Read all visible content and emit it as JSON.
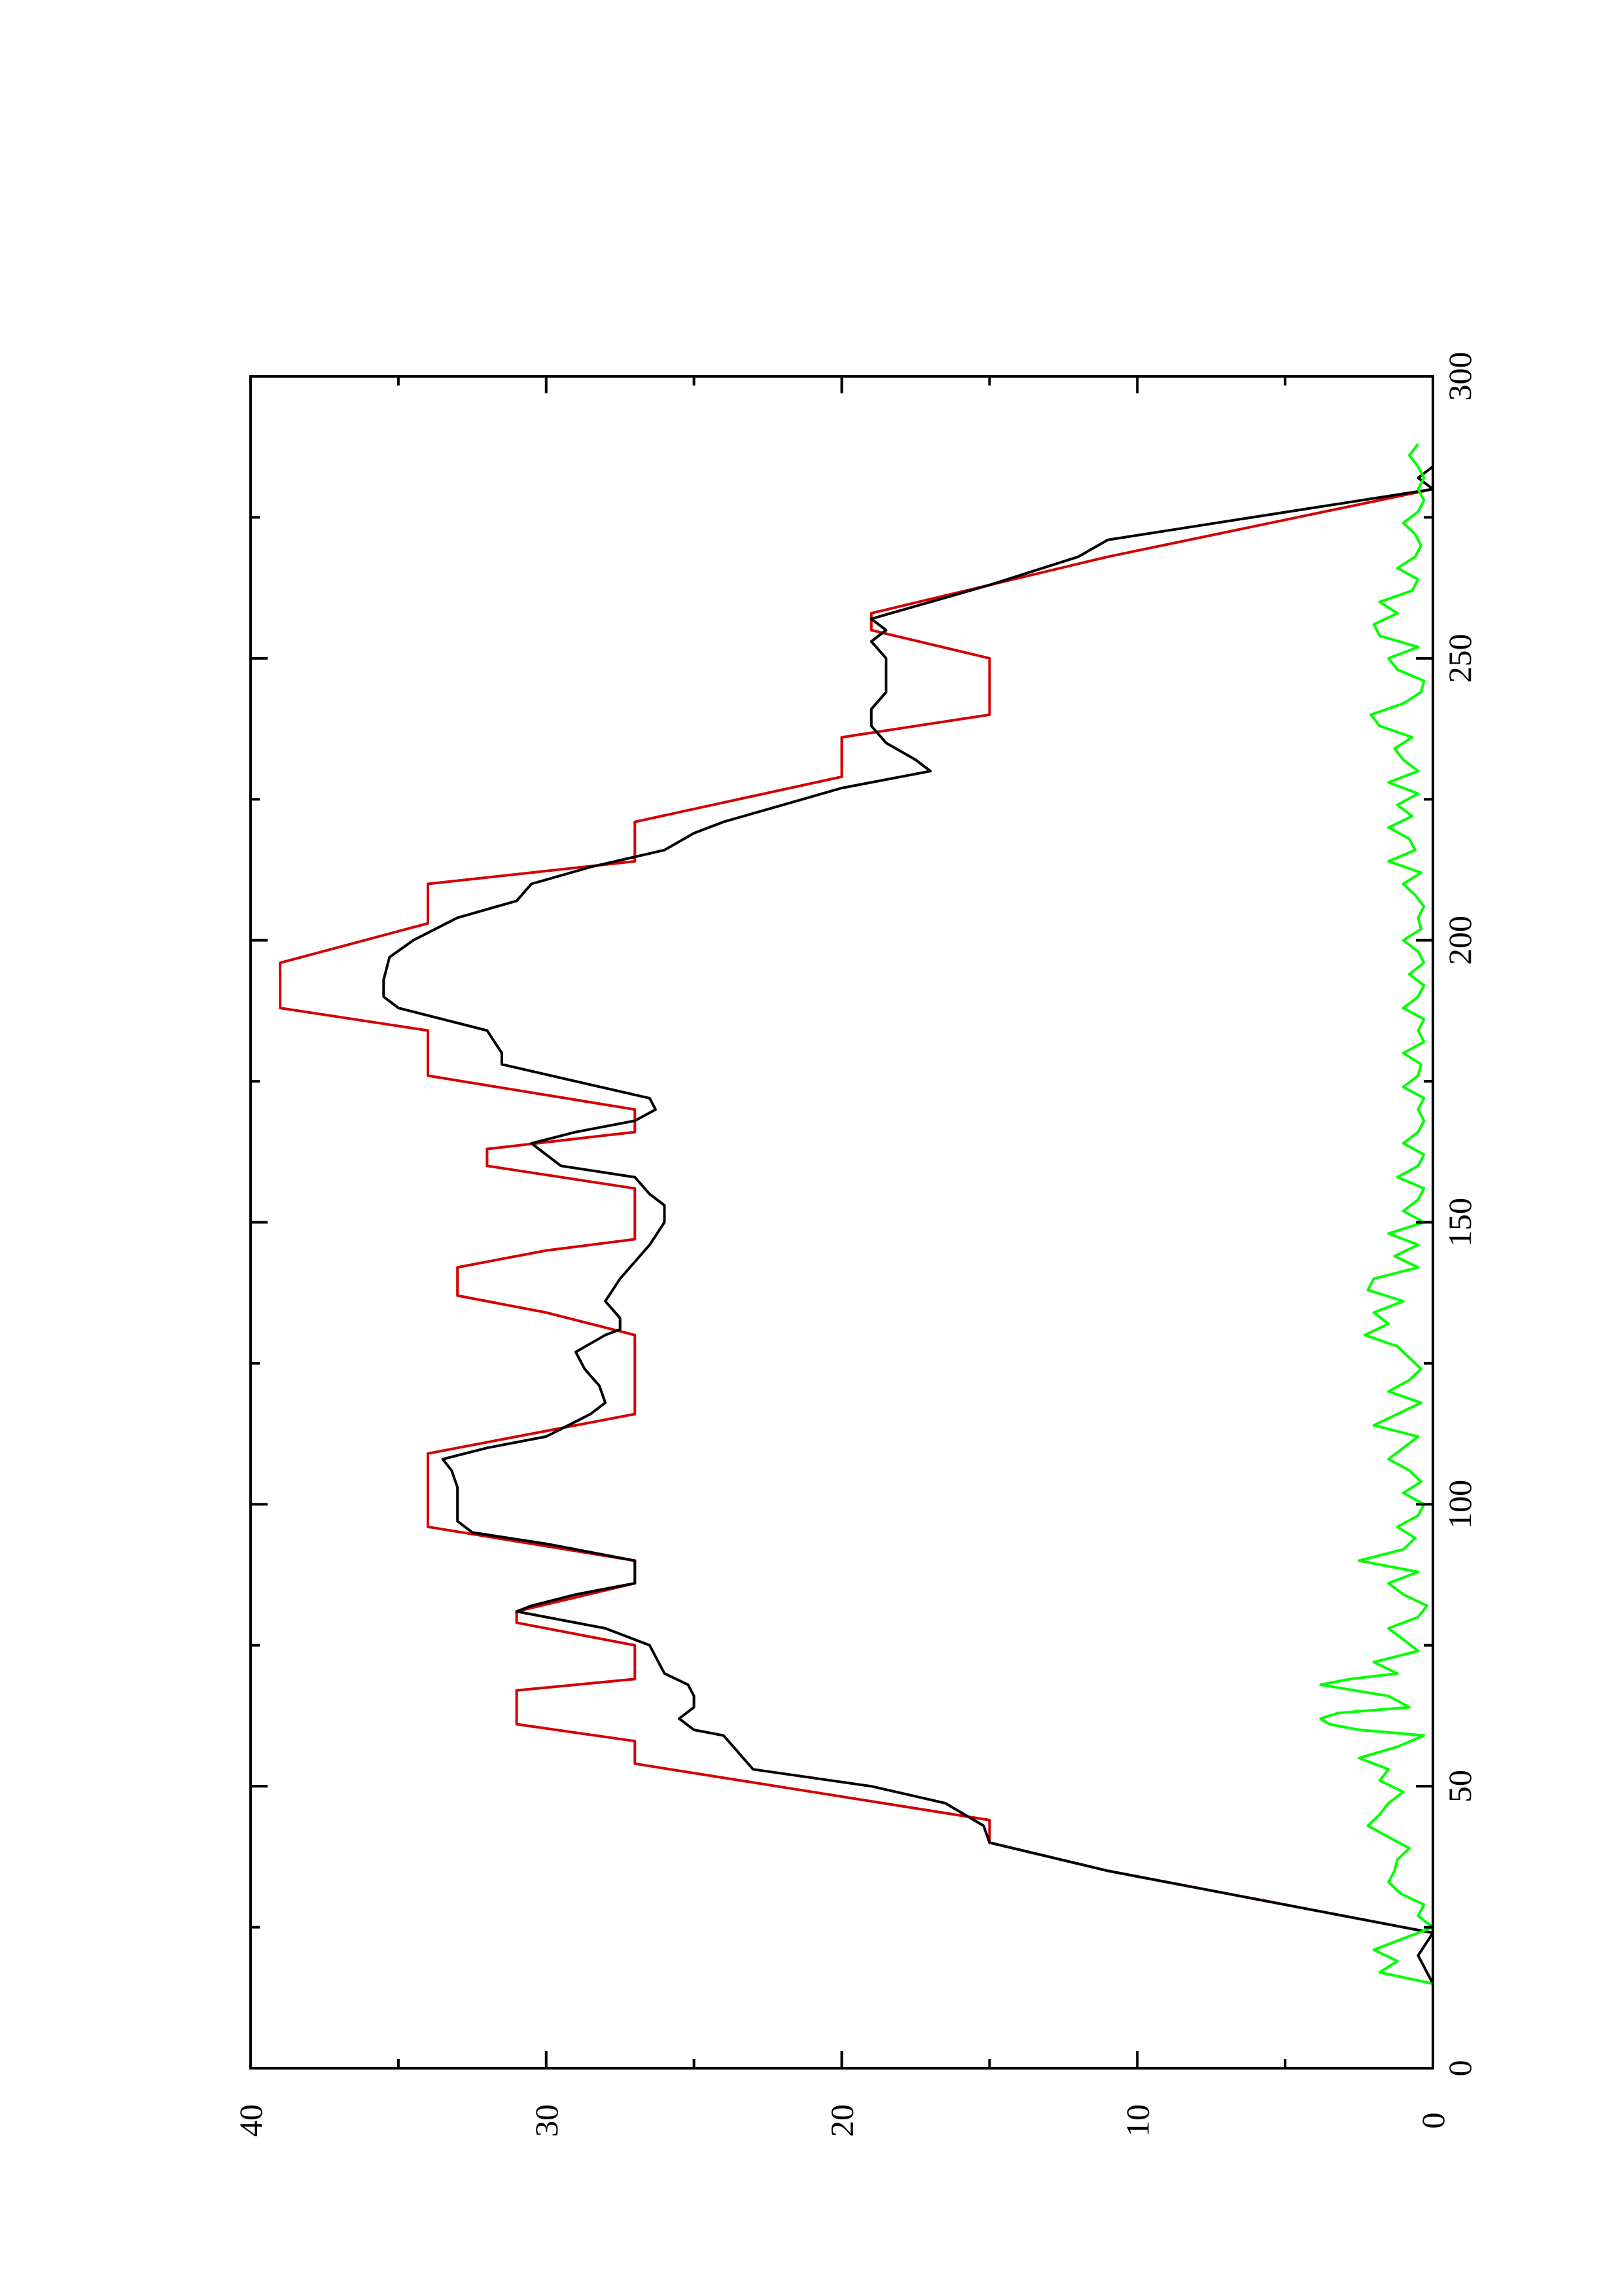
{
  "chart_data": {
    "type": "line",
    "orientation": "rotated-90-ccw",
    "title": "",
    "xlabel": "",
    "ylabel": "",
    "xlim": [
      0,
      300
    ],
    "ylim": [
      0,
      40
    ],
    "x_ticks": [
      "0",
      "50",
      "100",
      "150",
      "200",
      "250",
      "300"
    ],
    "y_ticks": [
      "0",
      "10",
      "20",
      "30",
      "40"
    ],
    "x_minor_step": 25,
    "y_minor_step": 5,
    "grid": false,
    "legend": "none",
    "series": [
      {
        "color": "#d40000",
        "points": [
          [
            0,
            0
          ],
          [
            24,
            0
          ],
          [
            35,
            11
          ],
          [
            40,
            15
          ],
          [
            44,
            15
          ],
          [
            54,
            27
          ],
          [
            58,
            27
          ],
          [
            61,
            31
          ],
          [
            67,
            31
          ],
          [
            69,
            27
          ],
          [
            75,
            27
          ],
          [
            79,
            31
          ],
          [
            81,
            31
          ],
          [
            86,
            27
          ],
          [
            90,
            27
          ],
          [
            96,
            34
          ],
          [
            109,
            34
          ],
          [
            116,
            27
          ],
          [
            130,
            27
          ],
          [
            134,
            30
          ],
          [
            137,
            33
          ],
          [
            142,
            33
          ],
          [
            145,
            30
          ],
          [
            147,
            27
          ],
          [
            156,
            27
          ],
          [
            160,
            32
          ],
          [
            163,
            32
          ],
          [
            166,
            27
          ],
          [
            170,
            27
          ],
          [
            176,
            34
          ],
          [
            184,
            34
          ],
          [
            188,
            39
          ],
          [
            196,
            39
          ],
          [
            203,
            34
          ],
          [
            210,
            34
          ],
          [
            214,
            27
          ],
          [
            221,
            27
          ],
          [
            229,
            20
          ],
          [
            236,
            20
          ],
          [
            240,
            15
          ],
          [
            250,
            15
          ],
          [
            255,
            19
          ],
          [
            258,
            19
          ],
          [
            263,
            15
          ],
          [
            268,
            11
          ],
          [
            280,
            0
          ],
          [
            300,
            0
          ]
        ]
      },
      {
        "color": "#000000",
        "points": [
          [
            0,
            0
          ],
          [
            15,
            0
          ],
          [
            20,
            0.5
          ],
          [
            24,
            0
          ],
          [
            35,
            11
          ],
          [
            40,
            15
          ],
          [
            43,
            15.2
          ],
          [
            47,
            16.5
          ],
          [
            50,
            19
          ],
          [
            53,
            23
          ],
          [
            56,
            23.5
          ],
          [
            59,
            24
          ],
          [
            60,
            25
          ],
          [
            62,
            25.5
          ],
          [
            64,
            25
          ],
          [
            66,
            25
          ],
          [
            68,
            25.2
          ],
          [
            70,
            26
          ],
          [
            72,
            26.2
          ],
          [
            75,
            26.5
          ],
          [
            78,
            28
          ],
          [
            81,
            31
          ],
          [
            82,
            30.5
          ],
          [
            84,
            29
          ],
          [
            86,
            27
          ],
          [
            88,
            27
          ],
          [
            90,
            27
          ],
          [
            93,
            30
          ],
          [
            95,
            32.5
          ],
          [
            97,
            33
          ],
          [
            99,
            33
          ],
          [
            103,
            33
          ],
          [
            106,
            33.2
          ],
          [
            108,
            33.5
          ],
          [
            110,
            32
          ],
          [
            112,
            30
          ],
          [
            116,
            28.5
          ],
          [
            118,
            28
          ],
          [
            121,
            28.2
          ],
          [
            124,
            28.7
          ],
          [
            127,
            29
          ],
          [
            130,
            28
          ],
          [
            131,
            27.5
          ],
          [
            133,
            27.5
          ],
          [
            136,
            28
          ],
          [
            140,
            27.5
          ],
          [
            143,
            27
          ],
          [
            146,
            26.5
          ],
          [
            150,
            26
          ],
          [
            153,
            26
          ],
          [
            155,
            26.5
          ],
          [
            158,
            27
          ],
          [
            160,
            29.5
          ],
          [
            162,
            30
          ],
          [
            164,
            30.5
          ],
          [
            166,
            29
          ],
          [
            168,
            27
          ],
          [
            170,
            26.3
          ],
          [
            172,
            26.5
          ],
          [
            175,
            29
          ],
          [
            178,
            31.5
          ],
          [
            180,
            31.5
          ],
          [
            184,
            32
          ],
          [
            188,
            35
          ],
          [
            190,
            35.5
          ],
          [
            193,
            35.5
          ],
          [
            197,
            35.3
          ],
          [
            200,
            34.5
          ],
          [
            204,
            33
          ],
          [
            207,
            31
          ],
          [
            210,
            30.5
          ],
          [
            213,
            28.5
          ],
          [
            216,
            26
          ],
          [
            219,
            25
          ],
          [
            221,
            24
          ],
          [
            224,
            22
          ],
          [
            227,
            20
          ],
          [
            230,
            17
          ],
          [
            232,
            17.5
          ],
          [
            235,
            18.5
          ],
          [
            238,
            19
          ],
          [
            241,
            19
          ],
          [
            244,
            18.5
          ],
          [
            247,
            18.5
          ],
          [
            250,
            18.5
          ],
          [
            253,
            19
          ],
          [
            255,
            18.5
          ],
          [
            257,
            19
          ],
          [
            260,
            17
          ],
          [
            263,
            15
          ],
          [
            268,
            12
          ],
          [
            271,
            11
          ],
          [
            280,
            0
          ],
          [
            282,
            0.5
          ],
          [
            284,
            0
          ],
          [
            300,
            0
          ]
        ]
      },
      {
        "color": "#00ff00",
        "points": [
          [
            0,
            0
          ],
          [
            15,
            0
          ],
          [
            17,
            1.8
          ],
          [
            19,
            1.2
          ],
          [
            21,
            2
          ],
          [
            23,
            1
          ],
          [
            25,
            0
          ],
          [
            27,
            0.5
          ],
          [
            29,
            0.3
          ],
          [
            31,
            1.1
          ],
          [
            33,
            1.5
          ],
          [
            35,
            1.3
          ],
          [
            37,
            1.2
          ],
          [
            39,
            0.8
          ],
          [
            41,
            1.5
          ],
          [
            43,
            2.2
          ],
          [
            45,
            1.8
          ],
          [
            47,
            1.5
          ],
          [
            49,
            1
          ],
          [
            51,
            1.8
          ],
          [
            53,
            1.5
          ],
          [
            55,
            2.5
          ],
          [
            57,
            1.2
          ],
          [
            59,
            0.3
          ],
          [
            60,
            2.5
          ],
          [
            61,
            3.5
          ],
          [
            62,
            3.8
          ],
          [
            63,
            3.2
          ],
          [
            64,
            0.8
          ],
          [
            66,
            1.5
          ],
          [
            68,
            3.8
          ],
          [
            69,
            2.8
          ],
          [
            70,
            1.2
          ],
          [
            72,
            2
          ],
          [
            74,
            0.5
          ],
          [
            76,
            1
          ],
          [
            78,
            1.5
          ],
          [
            80,
            0.5
          ],
          [
            82,
            0.2
          ],
          [
            84,
            1
          ],
          [
            86,
            1.5
          ],
          [
            88,
            0.5
          ],
          [
            90,
            2.5
          ],
          [
            92,
            1
          ],
          [
            94,
            0.6
          ],
          [
            96,
            1.2
          ],
          [
            98,
            0.5
          ],
          [
            100,
            0.3
          ],
          [
            102,
            1
          ],
          [
            104,
            0.4
          ],
          [
            106,
            0.8
          ],
          [
            108,
            1.5
          ],
          [
            110,
            1
          ],
          [
            112,
            0.5
          ],
          [
            114,
            2
          ],
          [
            116,
            1.2
          ],
          [
            118,
            0.4
          ],
          [
            120,
            1.5
          ],
          [
            122,
            0.8
          ],
          [
            124,
            0.4
          ],
          [
            126,
            0.8
          ],
          [
            128,
            1.2
          ],
          [
            130,
            2.3
          ],
          [
            132,
            1.5
          ],
          [
            134,
            2
          ],
          [
            136,
            1
          ],
          [
            138,
            2.2
          ],
          [
            140,
            2
          ],
          [
            142,
            0.5
          ],
          [
            144,
            1.3
          ],
          [
            146,
            0.5
          ],
          [
            148,
            1.5
          ],
          [
            150,
            0.3
          ],
          [
            152,
            1
          ],
          [
            154,
            0.5
          ],
          [
            156,
            0.3
          ],
          [
            158,
            1.2
          ],
          [
            160,
            0.5
          ],
          [
            162,
            0.3
          ],
          [
            164,
            1
          ],
          [
            166,
            0.5
          ],
          [
            168,
            0.3
          ],
          [
            170,
            0.5
          ],
          [
            172,
            0.3
          ],
          [
            174,
            1
          ],
          [
            176,
            0.5
          ],
          [
            178,
            0.4
          ],
          [
            180,
            1
          ],
          [
            182,
            0.3
          ],
          [
            184,
            0.5
          ],
          [
            186,
            0.3
          ],
          [
            188,
            1
          ],
          [
            190,
            0.5
          ],
          [
            192,
            0.3
          ],
          [
            194,
            0.8
          ],
          [
            196,
            0.3
          ],
          [
            198,
            0.5
          ],
          [
            200,
            1
          ],
          [
            202,
            0.4
          ],
          [
            204,
            0.5
          ],
          [
            206,
            0.3
          ],
          [
            208,
            0.6
          ],
          [
            210,
            1
          ],
          [
            212,
            0.4
          ],
          [
            214,
            1.5
          ],
          [
            216,
            0.6
          ],
          [
            218,
            0.8
          ],
          [
            220,
            1.5
          ],
          [
            222,
            0.7
          ],
          [
            224,
            1.2
          ],
          [
            226,
            0.5
          ],
          [
            228,
            1.5
          ],
          [
            230,
            0.5
          ],
          [
            232,
            1
          ],
          [
            234,
            1.3
          ],
          [
            236,
            0.7
          ],
          [
            238,
            1.8
          ],
          [
            240,
            2.1
          ],
          [
            242,
            1
          ],
          [
            244,
            0.4
          ],
          [
            246,
            0.3
          ],
          [
            248,
            1.2
          ],
          [
            250,
            1.5
          ],
          [
            252,
            0.5
          ],
          [
            254,
            1.8
          ],
          [
            256,
            2
          ],
          [
            258,
            1.2
          ],
          [
            260,
            1.8
          ],
          [
            262,
            0.7
          ],
          [
            264,
            0.5
          ],
          [
            266,
            1.2
          ],
          [
            268,
            0.6
          ],
          [
            270,
            0.4
          ],
          [
            272,
            0.6
          ],
          [
            274,
            1
          ],
          [
            276,
            0.5
          ],
          [
            278,
            0.3
          ],
          [
            280,
            0.5
          ],
          [
            282,
            0.3
          ],
          [
            284,
            0.5
          ],
          [
            286,
            0.8
          ],
          [
            288,
            0.5
          ]
        ]
      }
    ]
  }
}
